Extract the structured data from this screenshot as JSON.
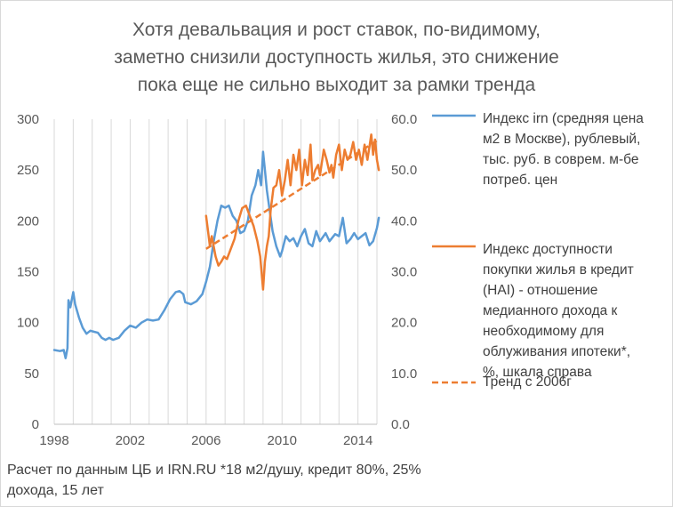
{
  "chart_data": {
    "type": "line",
    "title_lines": [
      "Хотя девальвация и рост ставок, по-видимому,",
      "заметно снизили доступность жилья, это снижение",
      "пока еще не сильно выходит за рамки тренда"
    ],
    "x_axis": {
      "min": 1998,
      "max": 2015,
      "ticks": [
        "1998",
        "2002",
        "2006",
        "2010",
        "2014"
      ]
    },
    "y_left": {
      "min": 0,
      "max": 300,
      "ticks": [
        "0",
        "50",
        "100",
        "150",
        "200",
        "250",
        "300"
      ]
    },
    "y_right": {
      "min": 0,
      "max": 60,
      "ticks": [
        "0.0",
        "10.0",
        "20.0",
        "30.0",
        "40.0",
        "50.0",
        "60.0"
      ]
    },
    "grid": "vertical",
    "legend_position": "right",
    "series": [
      {
        "name": "Индекс irn (средняя цена м2 в Москве), рублевый, тыс. руб. в соврем. м-бе потреб. цен",
        "legend_lines": [
          "Индекс irn (средняя цена",
          "м2 в Москве), рублевый,",
          "тыс. руб. в соврем. м-бе",
          "потреб. цен"
        ],
        "axis": "left",
        "color": "#5b9bd5",
        "points": [
          [
            1998.0,
            73
          ],
          [
            1998.3,
            72
          ],
          [
            1998.5,
            73
          ],
          [
            1998.6,
            65
          ],
          [
            1998.7,
            75
          ],
          [
            1998.75,
            122
          ],
          [
            1998.85,
            115
          ],
          [
            1999.0,
            130
          ],
          [
            1999.1,
            118
          ],
          [
            1999.3,
            105
          ],
          [
            1999.5,
            95
          ],
          [
            1999.7,
            89
          ],
          [
            1999.9,
            92
          ],
          [
            2000.1,
            91
          ],
          [
            2000.3,
            90
          ],
          [
            2000.5,
            85
          ],
          [
            2000.7,
            83
          ],
          [
            2000.9,
            85
          ],
          [
            2001.1,
            83
          ],
          [
            2001.4,
            85
          ],
          [
            2001.7,
            92
          ],
          [
            2002.0,
            97
          ],
          [
            2002.3,
            95
          ],
          [
            2002.6,
            100
          ],
          [
            2002.9,
            103
          ],
          [
            2003.2,
            102
          ],
          [
            2003.5,
            103
          ],
          [
            2003.8,
            112
          ],
          [
            2004.1,
            123
          ],
          [
            2004.4,
            130
          ],
          [
            2004.6,
            131
          ],
          [
            2004.8,
            128
          ],
          [
            2004.9,
            120
          ],
          [
            2005.2,
            118
          ],
          [
            2005.5,
            121
          ],
          [
            2005.8,
            128
          ],
          [
            2006.0,
            140
          ],
          [
            2006.2,
            155
          ],
          [
            2006.4,
            180
          ],
          [
            2006.6,
            200
          ],
          [
            2006.8,
            215
          ],
          [
            2007.0,
            213
          ],
          [
            2007.2,
            215
          ],
          [
            2007.4,
            205
          ],
          [
            2007.6,
            200
          ],
          [
            2007.8,
            188
          ],
          [
            2008.0,
            190
          ],
          [
            2008.2,
            200
          ],
          [
            2008.4,
            225
          ],
          [
            2008.6,
            235
          ],
          [
            2008.75,
            250
          ],
          [
            2008.8,
            245
          ],
          [
            2008.9,
            235
          ],
          [
            2009.0,
            268
          ],
          [
            2009.1,
            250
          ],
          [
            2009.2,
            230
          ],
          [
            2009.35,
            210
          ],
          [
            2009.5,
            190
          ],
          [
            2009.7,
            175
          ],
          [
            2009.9,
            165
          ],
          [
            2010.0,
            170
          ],
          [
            2010.2,
            185
          ],
          [
            2010.4,
            180
          ],
          [
            2010.6,
            183
          ],
          [
            2010.8,
            175
          ],
          [
            2011.0,
            185
          ],
          [
            2011.2,
            192
          ],
          [
            2011.4,
            178
          ],
          [
            2011.6,
            175
          ],
          [
            2011.8,
            190
          ],
          [
            2012.0,
            180
          ],
          [
            2012.3,
            188
          ],
          [
            2012.5,
            180
          ],
          [
            2012.8,
            187
          ],
          [
            2013.0,
            185
          ],
          [
            2013.2,
            203
          ],
          [
            2013.4,
            178
          ],
          [
            2013.6,
            182
          ],
          [
            2013.8,
            188
          ],
          [
            2014.0,
            182
          ],
          [
            2014.2,
            185
          ],
          [
            2014.4,
            188
          ],
          [
            2014.6,
            176
          ],
          [
            2014.8,
            180
          ],
          [
            2015.0,
            193
          ],
          [
            2015.1,
            203
          ]
        ]
      },
      {
        "name": "Индекс доступности покупки жилья в кредит (HAI) - отношение медианного дохода к необходимому для облуживания ипотеки*, %, шкала справа",
        "legend_lines": [
          "Индекс доступности",
          "покупки жилья в кредит",
          "(HAI) - отношение",
          "медианного дохода к",
          "необходимому для",
          "облуживания ипотеки*,",
          "%, шкала справа"
        ],
        "axis": "right",
        "color": "#ed7d31",
        "points": [
          [
            2006.0,
            41.0
          ],
          [
            2006.1,
            38.0
          ],
          [
            2006.2,
            35.0
          ],
          [
            2006.3,
            37.0
          ],
          [
            2006.5,
            33.0
          ],
          [
            2006.65,
            31.2
          ],
          [
            2006.8,
            32.0
          ],
          [
            2006.95,
            33.0
          ],
          [
            2007.1,
            32.5
          ],
          [
            2007.3,
            34.5
          ],
          [
            2007.5,
            36.5
          ],
          [
            2007.7,
            40.0
          ],
          [
            2007.9,
            42.5
          ],
          [
            2008.1,
            43.0
          ],
          [
            2008.3,
            41.0
          ],
          [
            2008.5,
            39.0
          ],
          [
            2008.7,
            36.0
          ],
          [
            2008.85,
            33.0
          ],
          [
            2009.0,
            26.5
          ],
          [
            2009.1,
            32.0
          ],
          [
            2009.2,
            35.0
          ],
          [
            2009.3,
            37.0
          ],
          [
            2009.4,
            42.0
          ],
          [
            2009.55,
            46.5
          ],
          [
            2009.7,
            47.0
          ],
          [
            2009.85,
            50.0
          ],
          [
            2010.0,
            45.0
          ],
          [
            2010.15,
            48.0
          ],
          [
            2010.3,
            52.0
          ],
          [
            2010.45,
            47.0
          ],
          [
            2010.6,
            53.0
          ],
          [
            2010.75,
            50.0
          ],
          [
            2010.9,
            54.0
          ],
          [
            2011.05,
            47.0
          ],
          [
            2011.2,
            52.0
          ],
          [
            2011.35,
            49.0
          ],
          [
            2011.5,
            55.0
          ],
          [
            2011.6,
            48.0
          ],
          [
            2011.75,
            50.0
          ],
          [
            2011.9,
            51.0
          ],
          [
            2012.0,
            49.0
          ],
          [
            2012.2,
            54.0
          ],
          [
            2012.35,
            52.0
          ],
          [
            2012.5,
            49.5
          ],
          [
            2012.6,
            51.0
          ],
          [
            2012.7,
            48.5
          ],
          [
            2012.85,
            53.0
          ],
          [
            2013.0,
            55.0
          ],
          [
            2013.15,
            50.0
          ],
          [
            2013.3,
            54.0
          ],
          [
            2013.45,
            52.0
          ],
          [
            2013.6,
            53.0
          ],
          [
            2013.75,
            55.5
          ],
          [
            2013.9,
            52.0
          ],
          [
            2014.05,
            54.0
          ],
          [
            2014.2,
            51.0
          ],
          [
            2014.35,
            55.0
          ],
          [
            2014.5,
            52.0
          ],
          [
            2014.6,
            54.5
          ],
          [
            2014.7,
            57.0
          ],
          [
            2014.8,
            53.0
          ],
          [
            2014.9,
            56.0
          ],
          [
            2015.0,
            52.0
          ],
          [
            2015.1,
            50.0
          ]
        ]
      },
      {
        "name": "Тренд с 2006г",
        "legend_lines": [
          "Тренд с 2006г"
        ],
        "axis": "right",
        "color": "#ed7d31",
        "dashed": true,
        "points": [
          [
            2006.0,
            34.5
          ],
          [
            2015.1,
            56.0
          ]
        ]
      }
    ],
    "footnote_lines": [
      "Расчет по данным ЦБ и IRN.RU *18 м2/душу, кредит 80%, 25%",
      "дохода, 15 лет"
    ]
  }
}
